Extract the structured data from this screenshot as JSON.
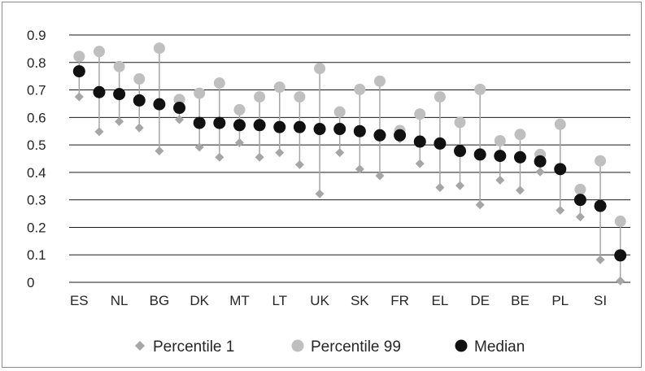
{
  "chart_data": {
    "type": "scatter",
    "categories": [
      "ES",
      "",
      "NL",
      "",
      "BG",
      "",
      "DK",
      "",
      "MT",
      "",
      "LT",
      "",
      "UK",
      "",
      "SK",
      "",
      "FR",
      "",
      "EL",
      "",
      "DE",
      "",
      "BE",
      "",
      "PL",
      "",
      "SI",
      ""
    ],
    "ylim": [
      0,
      0.9
    ],
    "yticks": [
      "0",
      "0.1",
      "0.2",
      "0.3",
      "0.4",
      "0.5",
      "0.6",
      "0.7",
      "0.8",
      "0.9"
    ],
    "grid": true,
    "legend_position": "bottom",
    "series": [
      {
        "name": "Percentile 1",
        "marker": "diamond",
        "color": "#a6a6a6",
        "values": [
          0.675,
          0.548,
          0.585,
          0.562,
          0.478,
          0.592,
          0.492,
          0.455,
          0.508,
          0.455,
          0.472,
          0.428,
          0.322,
          0.472,
          0.412,
          0.388,
          0.522,
          0.432,
          0.345,
          0.352,
          0.282,
          0.372,
          0.335,
          0.402,
          0.262,
          0.238,
          0.082,
          0.005
        ]
      },
      {
        "name": "Percentile 99",
        "marker": "circle",
        "color": "#bfbfbf",
        "values": [
          0.822,
          0.84,
          0.785,
          0.74,
          0.852,
          0.665,
          0.688,
          0.725,
          0.628,
          0.675,
          0.71,
          0.675,
          0.778,
          0.62,
          0.702,
          0.732,
          0.552,
          0.612,
          0.675,
          0.582,
          0.702,
          0.515,
          0.538,
          0.465,
          0.575,
          0.338,
          0.442,
          0.222
        ]
      },
      {
        "name": "Median",
        "marker": "circle",
        "color": "#111111",
        "values": [
          0.768,
          0.692,
          0.685,
          0.662,
          0.648,
          0.635,
          0.58,
          0.58,
          0.572,
          0.572,
          0.565,
          0.565,
          0.558,
          0.558,
          0.55,
          0.535,
          0.535,
          0.512,
          0.505,
          0.478,
          0.465,
          0.46,
          0.455,
          0.44,
          0.412,
          0.3,
          0.278,
          0.098
        ]
      }
    ]
  }
}
